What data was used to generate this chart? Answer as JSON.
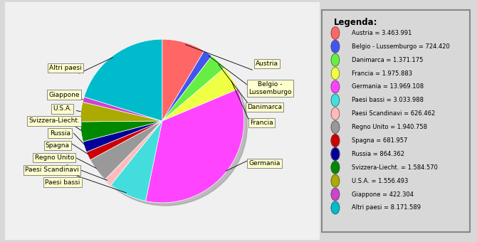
{
  "slices": [
    {
      "label": "Austria",
      "label2": "Austria",
      "value": 3463991,
      "color": "#FF6666"
    },
    {
      "label": "Belgio -\nLussemburgo",
      "label2": "Belgio -\nLussemburgo",
      "value": 724420,
      "color": "#4455EE"
    },
    {
      "label": "Danimarca",
      "label2": "Danimarca",
      "value": 1371175,
      "color": "#66EE44"
    },
    {
      "label": "Francia",
      "label2": "Francia",
      "value": 1975883,
      "color": "#EEFF44"
    },
    {
      "label": "Germania",
      "label2": "Germania",
      "value": 13969108,
      "color": "#FF44FF"
    },
    {
      "label": "Paesi bassi",
      "label2": "Paesi bassi",
      "value": 3033988,
      "color": "#44DDDD"
    },
    {
      "label": "Paesi Scandinavi",
      "label2": "Paesi Scandinavi",
      "value": 626462,
      "color": "#FFBBBB"
    },
    {
      "label": "Regno Unito",
      "label2": "Regno Unito",
      "value": 1940758,
      "color": "#999999"
    },
    {
      "label": "Spagna",
      "label2": "Spagna",
      "value": 681957,
      "color": "#CC0000"
    },
    {
      "label": "Russia",
      "label2": "Russia",
      "value": 864362,
      "color": "#000099"
    },
    {
      "label": "Svizzera-Liecht.",
      "label2": "Svizzera-Liecht.",
      "value": 1584570,
      "color": "#008800"
    },
    {
      "label": "U.S.A.",
      "label2": "U.S.A.",
      "value": 1556493,
      "color": "#AAAA00"
    },
    {
      "label": "Giappone",
      "label2": "Giappone",
      "value": 422304,
      "color": "#CC44CC"
    },
    {
      "label": "Altri paesi",
      "label2": "Altri paesi",
      "value": 8171589,
      "color": "#00BBCC"
    }
  ],
  "legend_title": "Legenda:",
  "legend_labels": [
    "Austria = 3.463.991",
    "Belgio - Lussemburgo = 724.420",
    "Danimarca = 1.371.175",
    "Francia = 1.975.883",
    "Germania = 13.969.108",
    "Paesi bassi = 3.033.988",
    "Paesi Scandinavi = 626.462",
    "Regno Unito = 1.940.758",
    "Spagna = 681.957",
    "Russia = 864.362",
    "Svizzera-Liecht. = 1.584.570",
    "U.S.A. = 1.556.493",
    "Giappone = 422.304",
    "Altri paesi = 8.171.589"
  ],
  "bg_color": "#D8D8D8",
  "chart_bg": "#F0F0F0",
  "label_box_color": "#FFFFCC",
  "label_box_edge": "#888888",
  "legend_bg": "#D8D8D8"
}
